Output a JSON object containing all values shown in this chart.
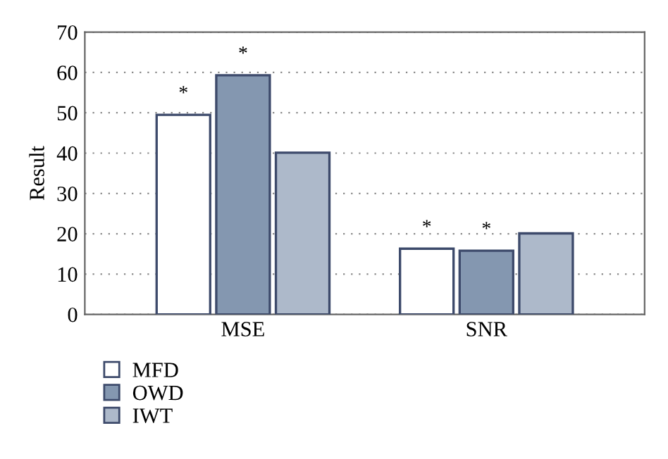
{
  "chart_data": {
    "type": "bar",
    "ylabel": "Result",
    "categories": [
      "MSE",
      "SNR"
    ],
    "series": [
      {
        "name": "MFD",
        "color": "#ffffff",
        "values": [
          49.5,
          16.3
        ],
        "value_labels": [
          "*",
          "*"
        ]
      },
      {
        "name": "OWD",
        "color": "#8497b0",
        "values": [
          59.3,
          15.8
        ],
        "value_labels": [
          "*",
          "*"
        ]
      },
      {
        "name": "IWT",
        "color": "#adb9ca",
        "values": [
          40.1,
          20.1
        ],
        "value_labels": [
          null,
          null
        ]
      }
    ],
    "ylim": [
      0,
      70
    ],
    "yticks": [
      0,
      10,
      20,
      30,
      40,
      50,
      60,
      70
    ],
    "grid": "y",
    "legend": "bottom left"
  }
}
